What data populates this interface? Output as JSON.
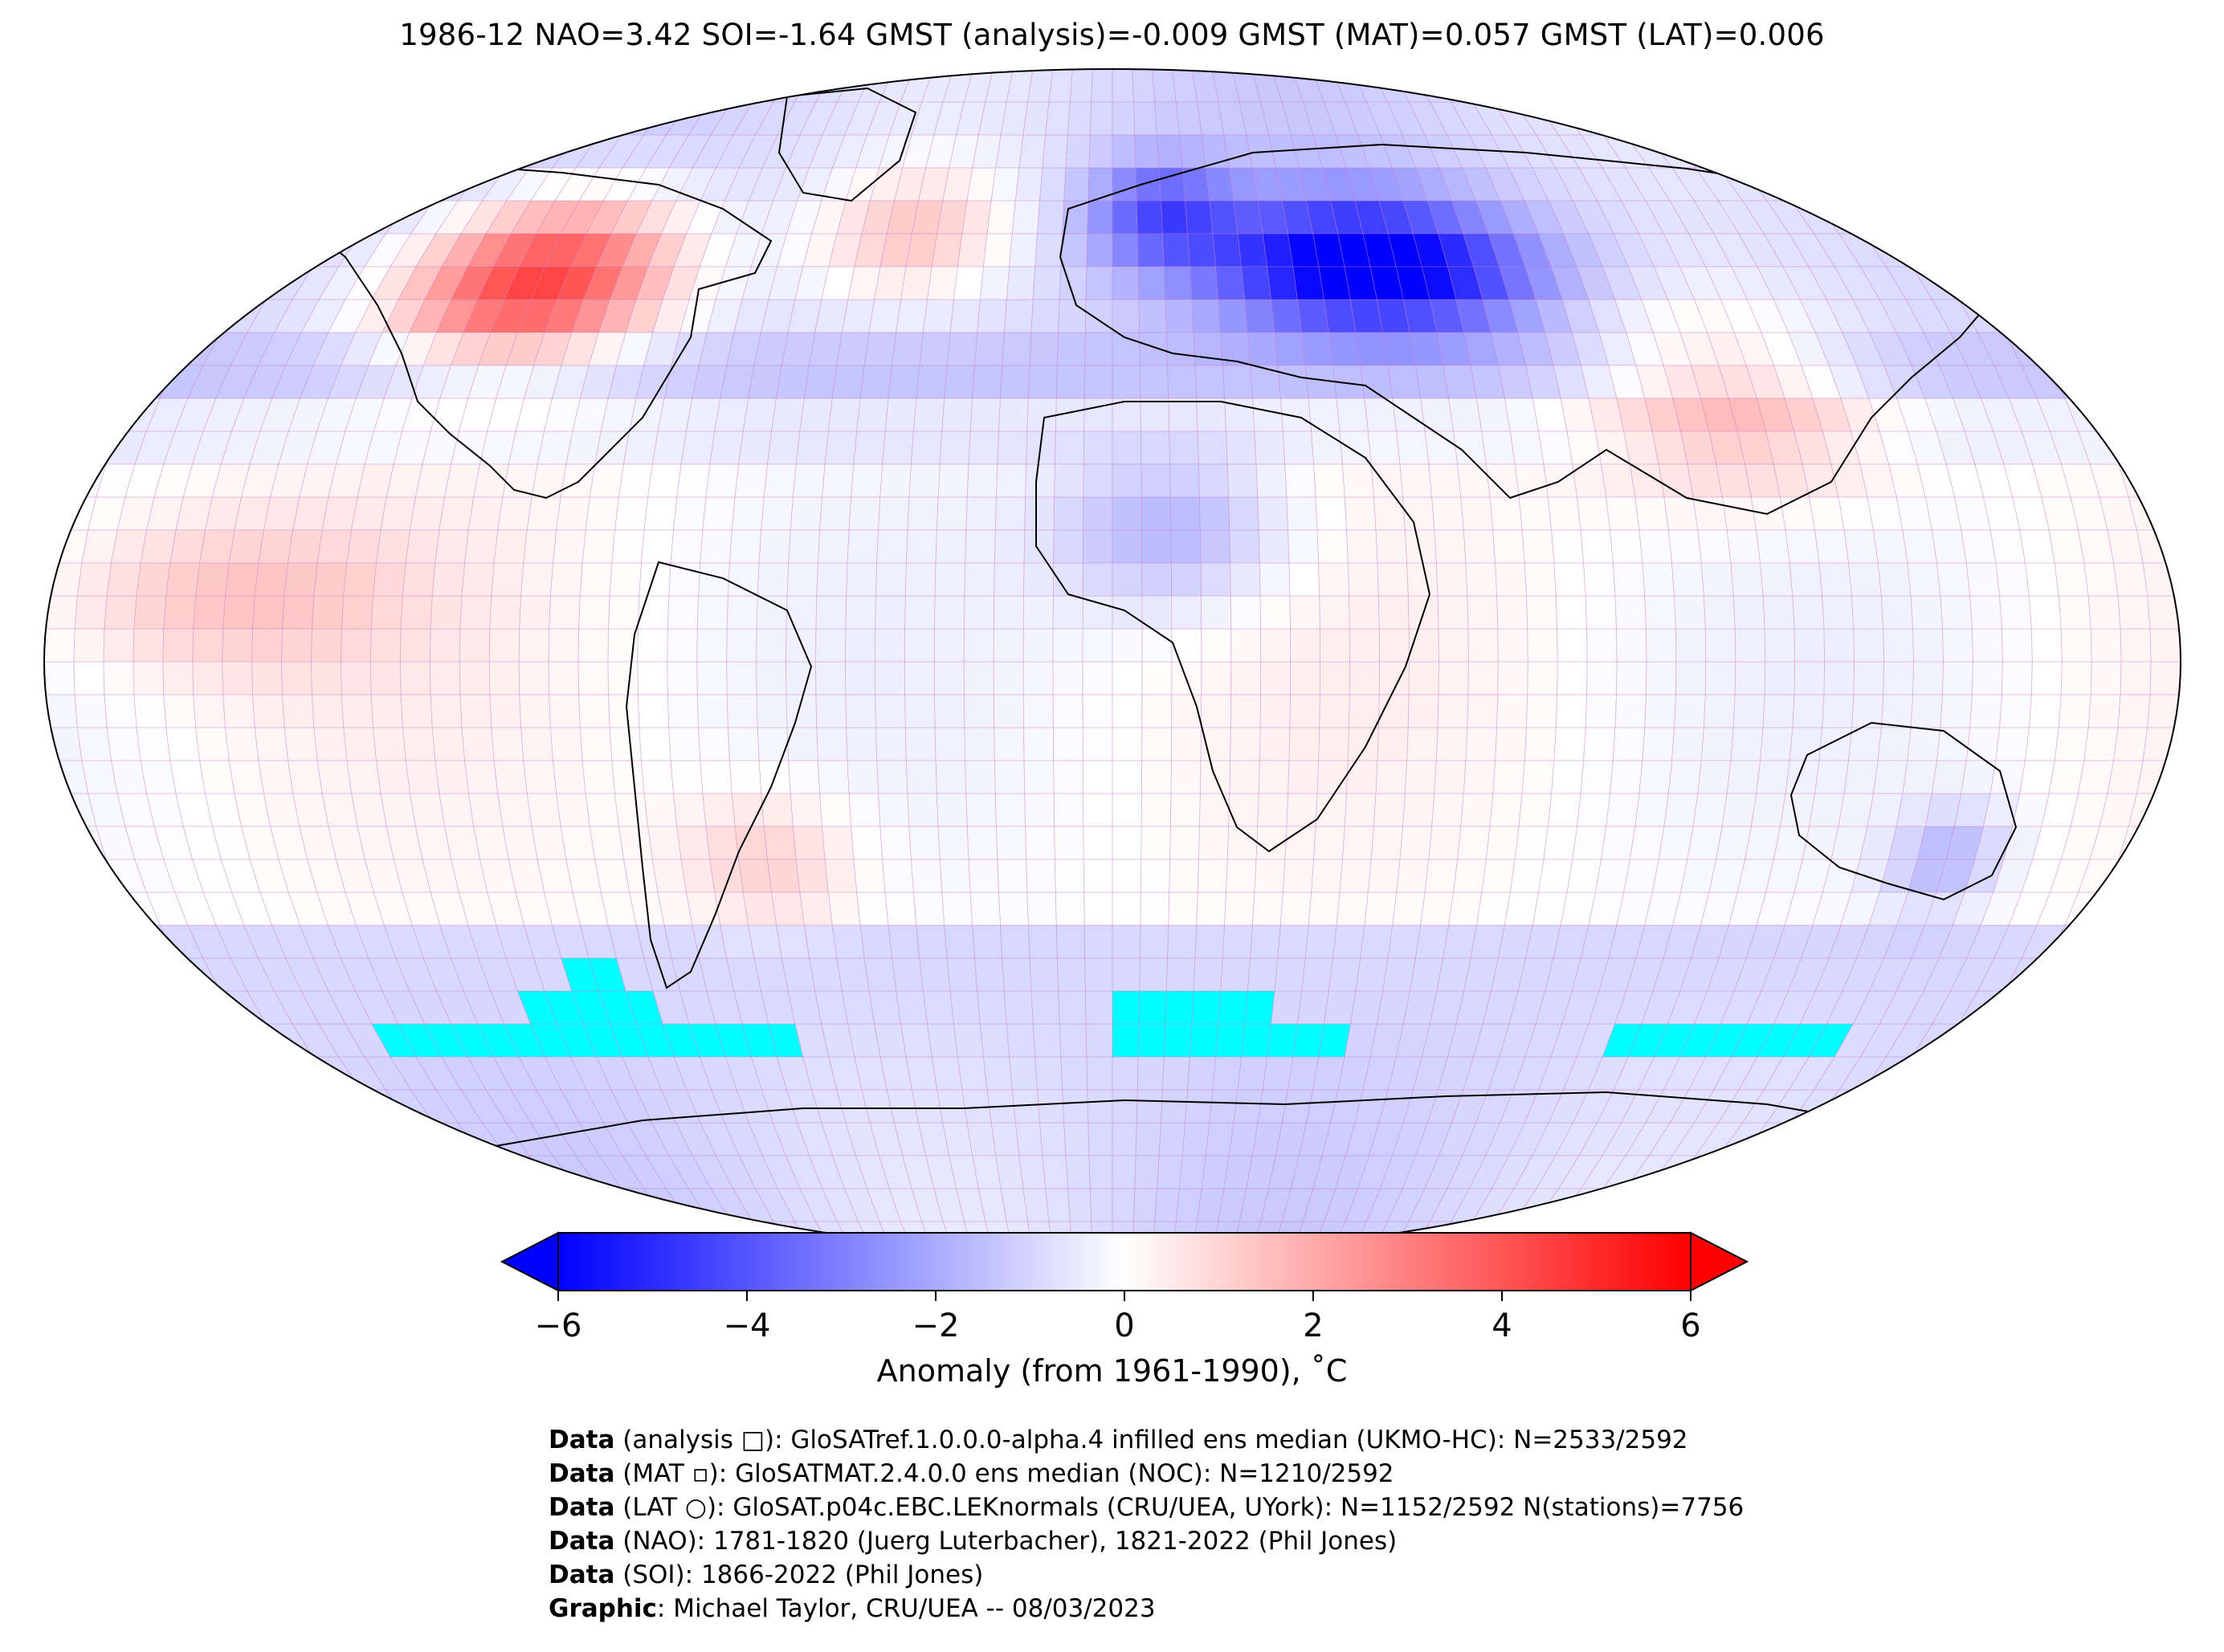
{
  "title": "1986-12 NAO=3.42 SOI=-1.64 GMST (analysis)=-0.009 GMST (MAT)=0.057 GMST (LAT)=0.006",
  "colorbar": {
    "label": "Anomaly (from 1961-1990), ˚C",
    "min": -6,
    "max": 6,
    "ticks": [
      "−6",
      "−4",
      "−2",
      "0",
      "2",
      "4",
      "6"
    ],
    "tick_values": [
      -6,
      -4,
      -2,
      0,
      2,
      4,
      6
    ],
    "low_color": "#0000ff",
    "mid_color": "#ffffff",
    "high_color": "#ff0000",
    "extend": "both"
  },
  "map": {
    "projection": "Robinson",
    "grid_color": "#c27ac2",
    "missing_color": "#00ffff",
    "coastline_color": "#000000"
  },
  "credits": [
    {
      "bold": "Data",
      "text": " (analysis □): GloSATref.1.0.0.0-alpha.4 infilled ens median (UKMO-HC): N=2533/2592"
    },
    {
      "bold": "Data",
      "text": " (MAT ▫): GloSATMAT.2.4.0.0 ens median (NOC): N=1210/2592"
    },
    {
      "bold": "Data",
      "text": " (LAT ○): GloSAT.p04c.EBC.LEKnormals (CRU/UEA, UYork): N=1152/2592 N(stations)=7756"
    },
    {
      "bold": "Data",
      "text": " (NAO): 1781-1820 (Juerg Luterbacher), 1821-2022 (Phil Jones)"
    },
    {
      "bold": "Data",
      "text": " (SOI): 1866-2022 (Phil Jones)"
    },
    {
      "bold": "Graphic",
      "text": ": Michael Taylor, CRU/UEA -- 08/03/2023"
    }
  ]
}
